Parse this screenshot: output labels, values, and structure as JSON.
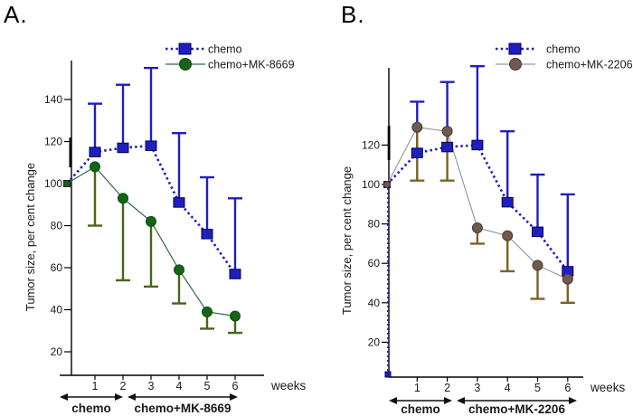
{
  "figure_title": "",
  "chart_data": [
    {
      "type": "line",
      "panel_label": "A.",
      "ylabel": "Tumor size, per cent change",
      "xlabel": "weeks",
      "x_weeks": [
        0,
        1,
        2,
        3,
        4,
        5,
        6
      ],
      "xticks": [
        "1",
        "2",
        "3",
        "4",
        "5",
        "6"
      ],
      "yticks": [
        140,
        120,
        100,
        80,
        60,
        40,
        20
      ],
      "ylim": [
        0,
        160
      ],
      "legend_position": "top-right",
      "grid": false,
      "series": [
        {
          "name": "chemo",
          "marker": "square",
          "line_style": "dashed",
          "color": "#1f1fbe",
          "marker_color": "#1f1fbe",
          "marker_edge": "#00005a",
          "errbar_color": "#1f1fbe",
          "errbar_dir": "up",
          "values": [
            100,
            115,
            117,
            118,
            91,
            76,
            57
          ],
          "err_caps": [
            null,
            138,
            147,
            155,
            124,
            103,
            93
          ]
        },
        {
          "name": "chemo+MK-8669",
          "marker": "circle",
          "line_style": "solid",
          "color": "#2e6b44",
          "marker_color": "#176417",
          "marker_edge": "#0b4d10",
          "errbar_color": "#47651d",
          "errbar_dir": "down",
          "values": [
            100,
            108,
            93,
            82,
            59,
            39,
            37
          ],
          "err_caps": [
            null,
            80,
            54,
            51,
            43,
            31,
            29
          ]
        }
      ],
      "phases": [
        {
          "label": "chemo",
          "weeks": [
            0,
            2
          ]
        },
        {
          "label": "chemo+MK-8669",
          "weeks": [
            2,
            6
          ]
        }
      ]
    },
    {
      "type": "line",
      "panel_label": "B.",
      "ylabel": "Tumor size, per cent change",
      "xlabel": "weeks",
      "x_weeks": [
        0,
        1,
        2,
        3,
        4,
        5,
        6
      ],
      "xticks": [
        "1",
        "2",
        "3",
        "4",
        "5",
        "6"
      ],
      "yticks": [
        120,
        100,
        80,
        60,
        40,
        20
      ],
      "ylim": [
        0,
        160
      ],
      "legend_position": "top-right",
      "grid": false,
      "series": [
        {
          "name": "chemo",
          "marker": "square",
          "line_style": "dashed",
          "color": "#1f1fbe",
          "marker_color": "#1f1fbe",
          "marker_edge": "#00005a",
          "errbar_color": "#1f1fbe",
          "errbar_dir": "up",
          "values": [
            100,
            116,
            119,
            120,
            91,
            76,
            56
          ],
          "err_caps": [
            null,
            142,
            152,
            160,
            127,
            105,
            95
          ]
        },
        {
          "name": "chemo+MK-2206",
          "marker": "circle",
          "line_style": "solid",
          "color": "#9a9a9a",
          "marker_color": "#70594e",
          "marker_edge": "#4a3a32",
          "errbar_color": "#7a6224",
          "errbar_dir": "down",
          "values": [
            100,
            129,
            127,
            78,
            74,
            59,
            52
          ],
          "err_caps": [
            null,
            102,
            102,
            70,
            56,
            42,
            40
          ]
        }
      ],
      "phases": [
        {
          "label": "chemo",
          "weeks": [
            0,
            2
          ]
        },
        {
          "label": "chemo+MK-2206",
          "weeks": [
            2,
            6
          ]
        }
      ]
    }
  ]
}
